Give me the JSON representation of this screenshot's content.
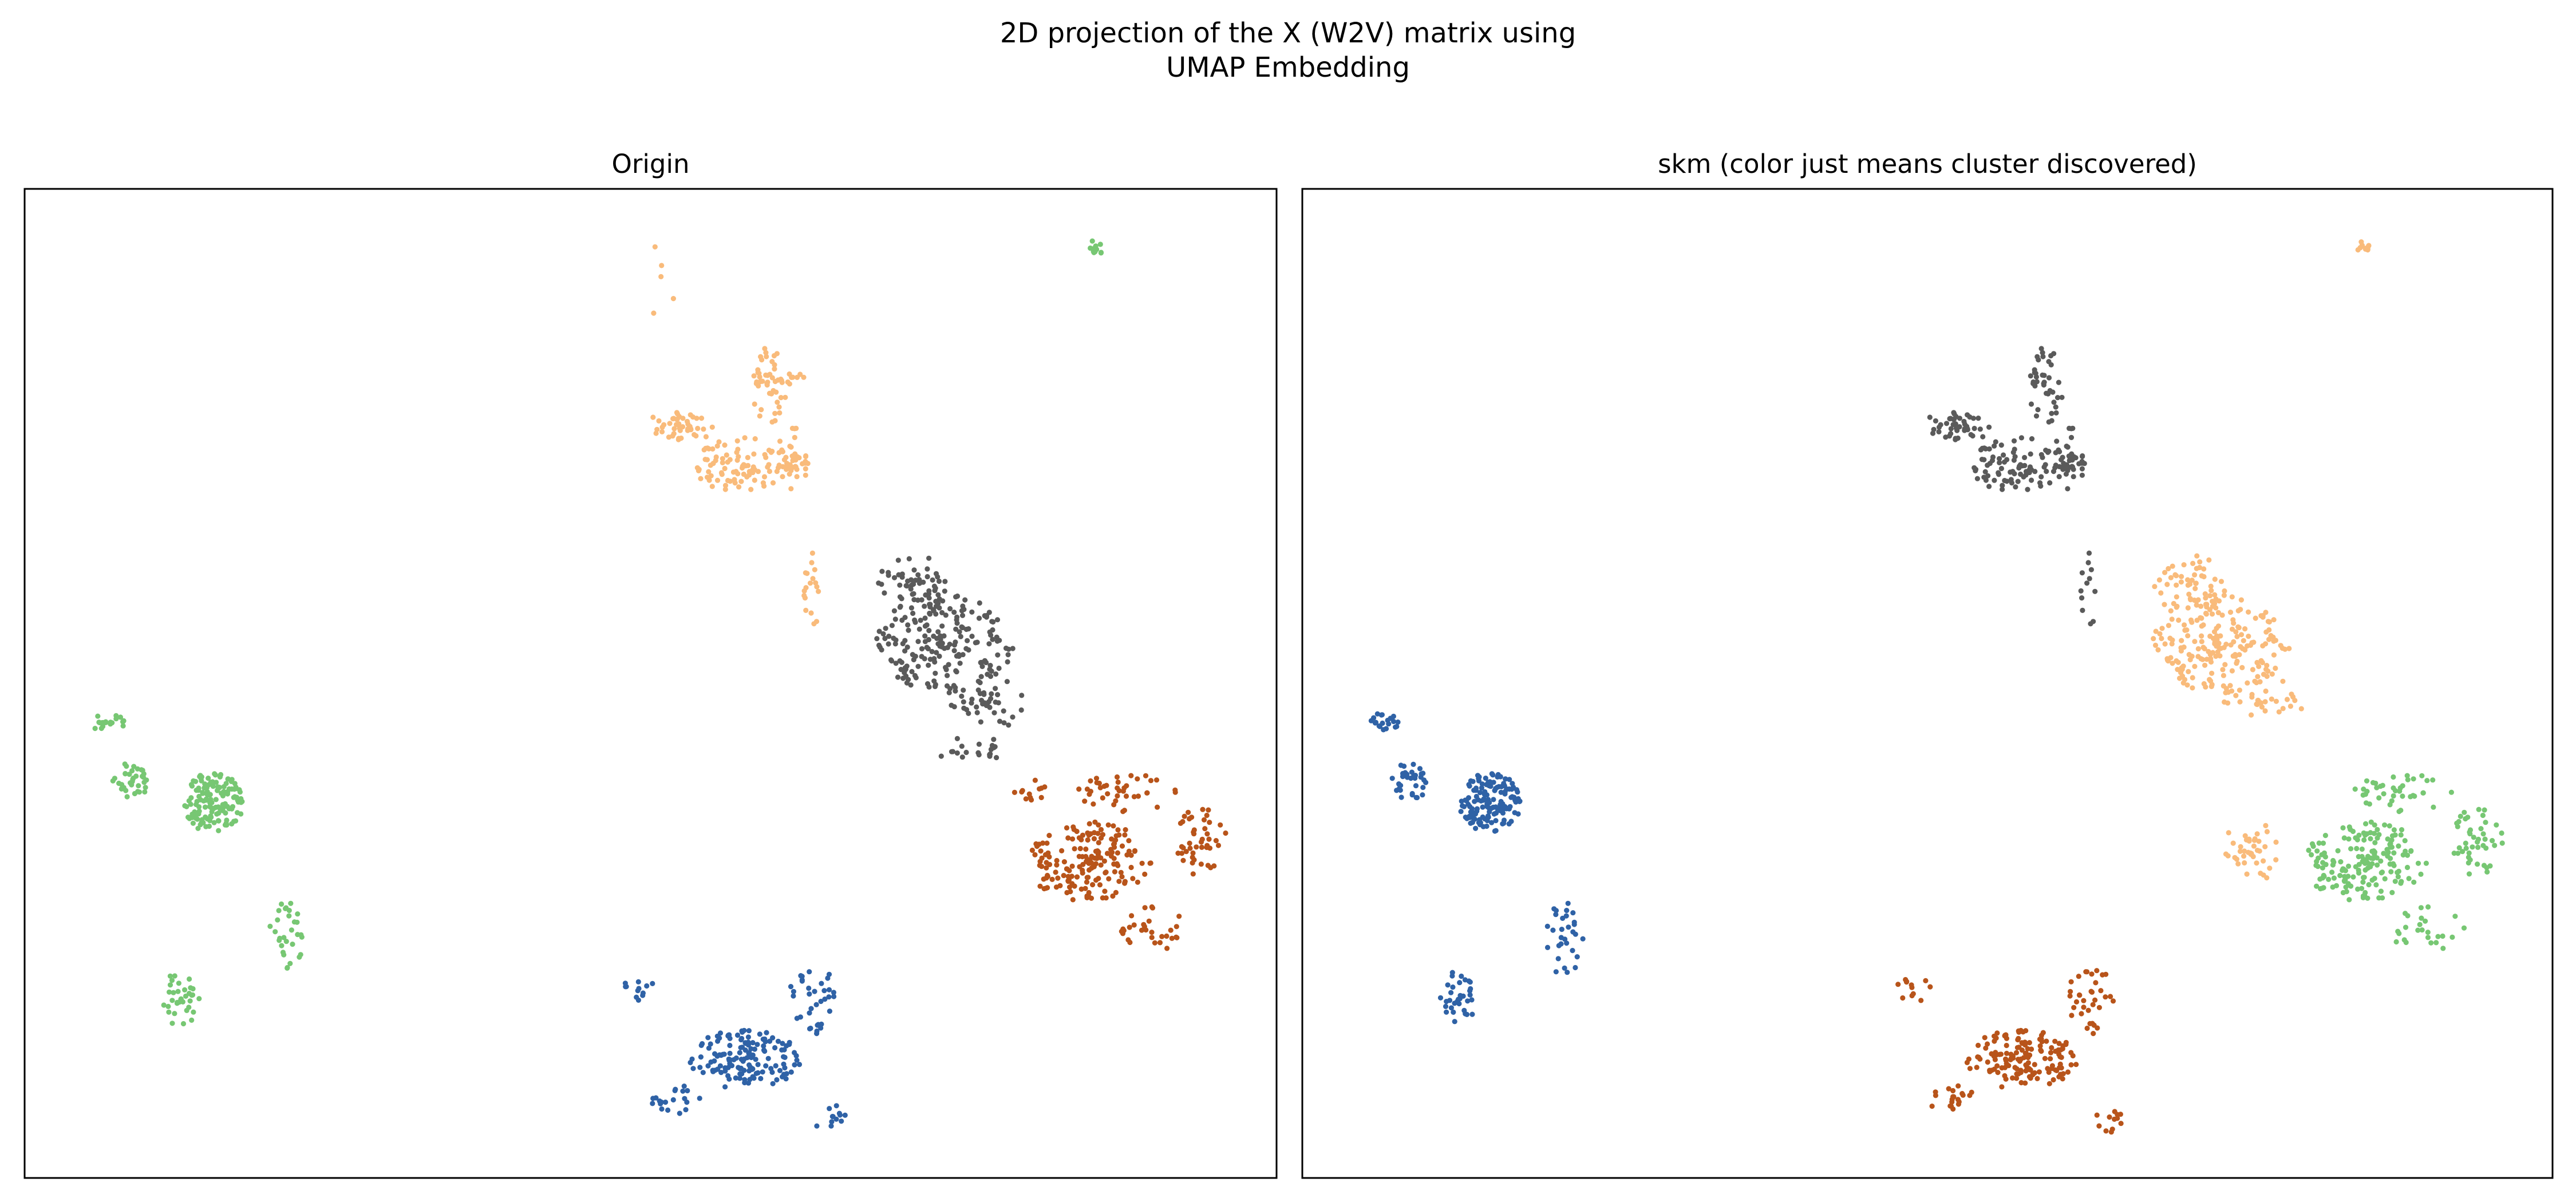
{
  "figure": {
    "title_line1": "2D projection of the X (W2V) matrix using",
    "title_line2": "UMAP Embedding"
  },
  "colors": {
    "cluster_blue": "#2f62a6",
    "cluster_orange": "#f9bb7b",
    "cluster_green": "#77c773",
    "cluster_dark": "#5a5a5a",
    "cluster_brown": "#b8541a"
  },
  "chart_data": [
    {
      "type": "scatter",
      "title": "Origin",
      "xlabel": "",
      "ylabel": "",
      "ticks": "none",
      "grid": false,
      "legend": "none",
      "xlim": [
        0,
        100
      ],
      "ylim": [
        0,
        100
      ],
      "series": [
        {
          "color": "#f9bb7b",
          "description": "upper-middle cluster",
          "blobs": [
            [
              57.5,
              72,
              4.0,
              3.0,
              90
            ],
            [
              52.5,
              76,
              3.0,
              1.5,
              45
            ],
            [
              59.5,
              80,
              1.5,
              4.0,
              40
            ],
            [
              61.5,
              73,
              1.5,
              3.5,
              40
            ],
            [
              63,
              60,
              1.0,
              4.0,
              18
            ],
            [
              60.5,
              81,
              2.0,
              1.5,
              15
            ],
            [
              51,
              91,
              1.8,
              4.0,
              5
            ]
          ]
        },
        {
          "color": "#5a5a5a",
          "description": "center cluster",
          "blobs": [
            [
              73.5,
              54,
              5.5,
              5.0,
              200
            ],
            [
              71,
              60,
              3.0,
              3.0,
              50
            ],
            [
              77,
              48,
              3.5,
              2.5,
              40
            ],
            [
              76,
              43,
              3.0,
              2.0,
              20
            ]
          ]
        },
        {
          "color": "#b8541a",
          "description": "right cluster",
          "blobs": [
            [
              85,
              32,
              5.0,
              4.0,
              170
            ],
            [
              94,
              34,
              2.0,
              3.5,
              45
            ],
            [
              88,
              39,
              4.0,
              2.0,
              40
            ],
            [
              90,
              25,
              3.0,
              2.5,
              30
            ],
            [
              80,
              39,
              2.0,
              1.5,
              12
            ]
          ]
        },
        {
          "color": "#2f62a6",
          "description": "lower-middle cluster",
          "blobs": [
            [
              57.5,
              12,
              4.5,
              3.0,
              150
            ],
            [
              63,
              18,
              2.0,
              3.5,
              35
            ],
            [
              49,
              19,
              1.5,
              1.5,
              12
            ],
            [
              64.5,
              6,
              1.5,
              1.5,
              12
            ],
            [
              52,
              8,
              2.0,
              1.5,
              20
            ]
          ]
        },
        {
          "color": "#77c773",
          "description": "left cluster and top streak",
          "blobs": [
            [
              15,
              38,
              2.5,
              3.0,
              140
            ],
            [
              8.5,
              40,
              1.5,
              2.0,
              35
            ],
            [
              12.5,
              18,
              1.5,
              3.0,
              35
            ],
            [
              21,
              24,
              1.5,
              4.0,
              30
            ],
            [
              6.5,
              46,
              1.5,
              1.0,
              20
            ],
            [
              85.5,
              94,
              0.6,
              0.9,
              14
            ]
          ]
        }
      ]
    },
    {
      "type": "scatter",
      "title": "skm (color just means cluster discovered)",
      "xlabel": "",
      "ylabel": "",
      "ticks": "none",
      "grid": false,
      "legend": "none",
      "xlim": [
        0,
        100
      ],
      "ylim": [
        0,
        100
      ],
      "series": [
        {
          "color": "#5a5a5a",
          "description": "upper-middle cluster",
          "blobs": [
            [
              57.5,
              72,
              4.0,
              3.0,
              90
            ],
            [
              52.5,
              76,
              3.0,
              1.5,
              45
            ],
            [
              59.5,
              80,
              1.5,
              4.0,
              40
            ],
            [
              61.5,
              73,
              1.5,
              3.5,
              40
            ],
            [
              63,
              60,
              1.0,
              4.0,
              12
            ]
          ]
        },
        {
          "color": "#f9bb7b",
          "description": "center cluster",
          "blobs": [
            [
              73.5,
              54,
              5.5,
              5.0,
              200
            ],
            [
              71,
              60,
              3.0,
              3.0,
              50
            ],
            [
              77,
              48,
              3.5,
              2.5,
              30
            ],
            [
              76,
              33,
              2.5,
              3.0,
              40
            ],
            [
              85,
              94,
              0.6,
              0.9,
              12
            ]
          ]
        },
        {
          "color": "#77c773",
          "description": "right cluster",
          "blobs": [
            [
              85,
              32,
              5.0,
              4.0,
              170
            ],
            [
              94,
              34,
              2.0,
              3.5,
              45
            ],
            [
              88,
              39,
              4.0,
              2.0,
              40
            ],
            [
              90,
              25,
              3.0,
              2.5,
              25
            ]
          ]
        },
        {
          "color": "#b8541a",
          "description": "lower-middle cluster",
          "blobs": [
            [
              57.5,
              12,
              4.5,
              3.0,
              150
            ],
            [
              63,
              18,
              2.0,
              3.5,
              35
            ],
            [
              49,
              19,
              1.5,
              1.5,
              12
            ],
            [
              64.5,
              6,
              1.5,
              1.5,
              12
            ],
            [
              52,
              8,
              2.0,
              1.5,
              20
            ]
          ]
        },
        {
          "color": "#2f62a6",
          "description": "left cluster",
          "blobs": [
            [
              15,
              38,
              2.5,
              3.0,
              140
            ],
            [
              8.5,
              40,
              1.5,
              2.0,
              35
            ],
            [
              12.5,
              18,
              1.5,
              3.0,
              35
            ],
            [
              21,
              24,
              1.5,
              4.0,
              30
            ],
            [
              6.5,
              46,
              1.5,
              1.0,
              20
            ]
          ]
        }
      ]
    }
  ]
}
